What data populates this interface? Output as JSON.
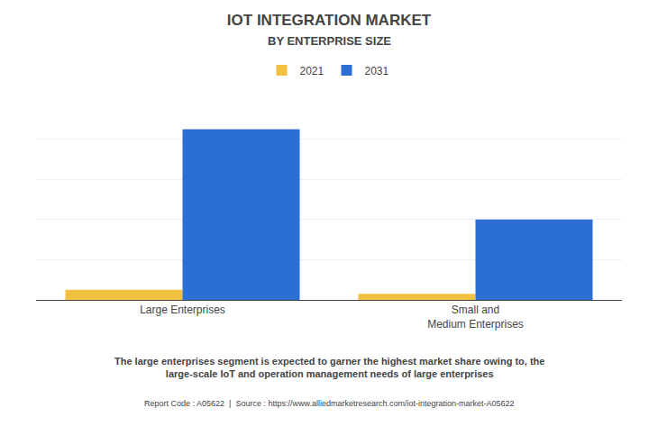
{
  "chart_data": {
    "type": "bar",
    "title": "IOT INTEGRATION MARKET",
    "subtitle": "BY ENTERPRISE SIZE",
    "categories": [
      "Large Enterprises",
      "Small and\nMedium Enterprises"
    ],
    "series": [
      {
        "name": "2021",
        "color": "#F0C040",
        "values": [
          5,
          3
        ]
      },
      {
        "name": "2031",
        "color": "#2B6FD4",
        "values": [
          85,
          40
        ]
      }
    ],
    "ylim": [
      0,
      100
    ],
    "yticks": [
      20,
      40,
      60,
      80,
      100
    ],
    "grid": true,
    "tick_labels": "x",
    "legend": "upper center",
    "annotations": [
      "The large enterprises segment is expected to garner the highest market share owing to, the\nlarge-scale IoT and operation management needs of large enterprises",
      "Report Code : A05622  |  Source : https://www.alliedmarketresearch.com/iot-integration-market-A05622"
    ]
  }
}
